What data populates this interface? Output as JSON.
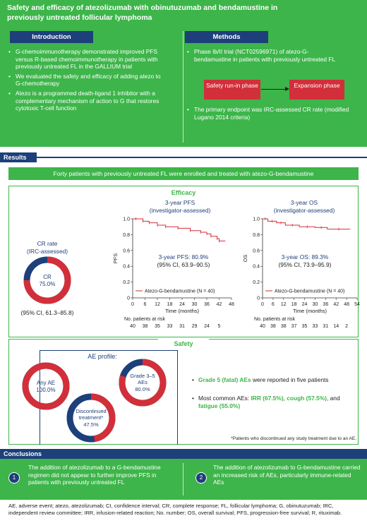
{
  "header": {
    "title": "Safety and efficacy of atezolizumab with obinutuzumab and bendamustine in previously untreated follicular lymphoma"
  },
  "introduction": {
    "heading": "Introduction",
    "bullets": [
      "G-chemoimmunotherapy demonstrated improved PFS versus R-based chemoimmunotherapy in patients with previously untreated FL in the GALLIUM trial",
      "We evaluated the safety and efficacy of adding atezo to G-chemotherapy",
      "Atezo is a programmed death-ligand 1 inhibitor with a complementary mechanism of action to G that restores cytotoxic T-cell function"
    ]
  },
  "methods": {
    "heading": "Methods",
    "bullet1": "Phase Ib/II trial (NCT02596971) of atezo-G-bendamustine in patients with previously untreated FL",
    "phase1": "Safety run-in phase",
    "phase2": "Expansion phase",
    "bullet2": "The primary endpoint was IRC-assessed CR rate (modified Lugano 2014 criteria)"
  },
  "results": {
    "heading": "Results",
    "banner": "Forty patients with previously untreated FL were enrolled and treated with atezo-G-bendamustine",
    "efficacy_label": "Efficacy",
    "safety_label": "Safety"
  },
  "cr": {
    "title_line1": "CR rate",
    "title_line2": "(IRC-assessed)",
    "center_label": "CR",
    "center_value": "75.0%",
    "ci": "(95% CI, 61.3–85.8)",
    "fraction": 0.75
  },
  "pfs": {
    "title_line1": "3-year PFS",
    "title_line2": "(investigator-assessed)",
    "y_label": "PFS",
    "x_label": "Time (months)",
    "value_label": "3-year PFS: 80.9%",
    "ci": "(95% CI, 63.9–90.5)",
    "legend": "Atezo-G-bendamustine (N = 40)",
    "risk_title": "No. patients at risk",
    "risk": [
      "40",
      "38",
      "35",
      "33",
      "31",
      "29",
      "24",
      "5"
    ]
  },
  "os": {
    "title_line1": "3-year OS",
    "title_line2": "(investigator-assessed)",
    "y_label": "OS",
    "x_label": "Time (months)",
    "value_label": "3-year OS: 89.3%",
    "ci": "(95% CI, 73.9–95.9)",
    "legend": "Atezo-G-bendamustine (N = 40)",
    "risk_title": "No. patients at risk",
    "risk": [
      "40",
      "38",
      "38",
      "37",
      "35",
      "33",
      "31",
      "14",
      "2"
    ]
  },
  "chart_data": [
    {
      "type": "line",
      "title": "3-year PFS",
      "xlabel": "Time (months)",
      "ylabel": "PFS",
      "xlim": [
        0,
        48
      ],
      "ylim": [
        0,
        1.0
      ],
      "x_ticks": [
        "0",
        "6",
        "12",
        "18",
        "24",
        "30",
        "36",
        "42",
        "48"
      ],
      "y_ticks": [
        "0",
        "0.2",
        "0.4",
        "0.6",
        "0.8",
        "1.0"
      ],
      "series": [
        {
          "name": "Atezo-G-bendamustine (N = 40)",
          "x": [
            0,
            3,
            5,
            5,
            8,
            8,
            12,
            12,
            16,
            16,
            22,
            22,
            28,
            28,
            33,
            33,
            36,
            36,
            38,
            38,
            41,
            41,
            42,
            42,
            45
          ],
          "y": [
            1.0,
            1.0,
            1.0,
            0.97,
            0.97,
            0.95,
            0.95,
            0.92,
            0.92,
            0.9,
            0.9,
            0.88,
            0.88,
            0.85,
            0.85,
            0.83,
            0.83,
            0.81,
            0.81,
            0.78,
            0.78,
            0.75,
            0.75,
            0.72,
            0.72
          ]
        }
      ]
    },
    {
      "type": "line",
      "title": "3-year OS",
      "xlabel": "Time (months)",
      "ylabel": "OS",
      "xlim": [
        0,
        54
      ],
      "ylim": [
        0,
        1.0
      ],
      "x_ticks": [
        "0",
        "6",
        "12",
        "18",
        "24",
        "30",
        "36",
        "42",
        "48",
        "54"
      ],
      "y_ticks": [
        "0",
        "0.2",
        "0.4",
        "0.6",
        "0.8",
        "1.0"
      ],
      "series": [
        {
          "name": "Atezo-G-bendamustine (N = 40)",
          "x": [
            0,
            3,
            3,
            8,
            8,
            13,
            13,
            21,
            21,
            30,
            30,
            37,
            37,
            50
          ],
          "y": [
            1.0,
            1.0,
            0.97,
            0.97,
            0.95,
            0.95,
            0.92,
            0.92,
            0.9,
            0.9,
            0.89,
            0.89,
            0.87,
            0.87
          ]
        }
      ]
    },
    {
      "type": "pie",
      "title": "CR rate (IRC-assessed)",
      "categories": [
        "CR",
        "Other"
      ],
      "values": [
        75.0,
        25.0
      ]
    }
  ],
  "ae": {
    "profile_label": "AE profile:",
    "any_label": "Any AE",
    "any_value": "100.0%",
    "any_fraction": 1.0,
    "grade_label": "Grade 3–5 AEs",
    "grade_value": "80.0%",
    "grade_fraction": 0.8,
    "disc_label": "Discontinued treatment*",
    "disc_value": "47.5%",
    "disc_fraction": 0.475
  },
  "key": {
    "grade5_bold": "Grade 5 (fatal) AEs",
    "grade5_rest": " were reported in five patients",
    "common_prefix": "Most common AEs: ",
    "irr": "IRR (67.5%)",
    "cough": "cough (57.5%)",
    "and": ", and ",
    "fatigue": "fatigue (55.0%)",
    "comma": ", "
  },
  "footnote": "*Patients who discontinued any study treatment due to an AE.",
  "conclusions": {
    "heading": "Conclusions",
    "items": [
      {
        "num": "1",
        "text": "The addition of atezolizumab to a G-bendamustine regimen did not appear to further improve PFS in patients with previously untreated FL"
      },
      {
        "num": "2",
        "text": "The addition of atezolizumab to G-bendamustine carried an increased risk of AEs, particularly immune-related AEs"
      }
    ]
  },
  "abbreviations": "AE, adverse event; atezo, atezolizumab; CI, confidence interval; CR, complete response; FL, follicular lymphoma; G, obinutuzumab; IRC, independent review committee; IRR, infusion-related reaction; No. number; OS, overall survival; PFS, progression-free survival; R, rituximab.",
  "colors": {
    "green": "#3db54a",
    "navy": "#1d3f7a",
    "red": "#d22f3a"
  }
}
